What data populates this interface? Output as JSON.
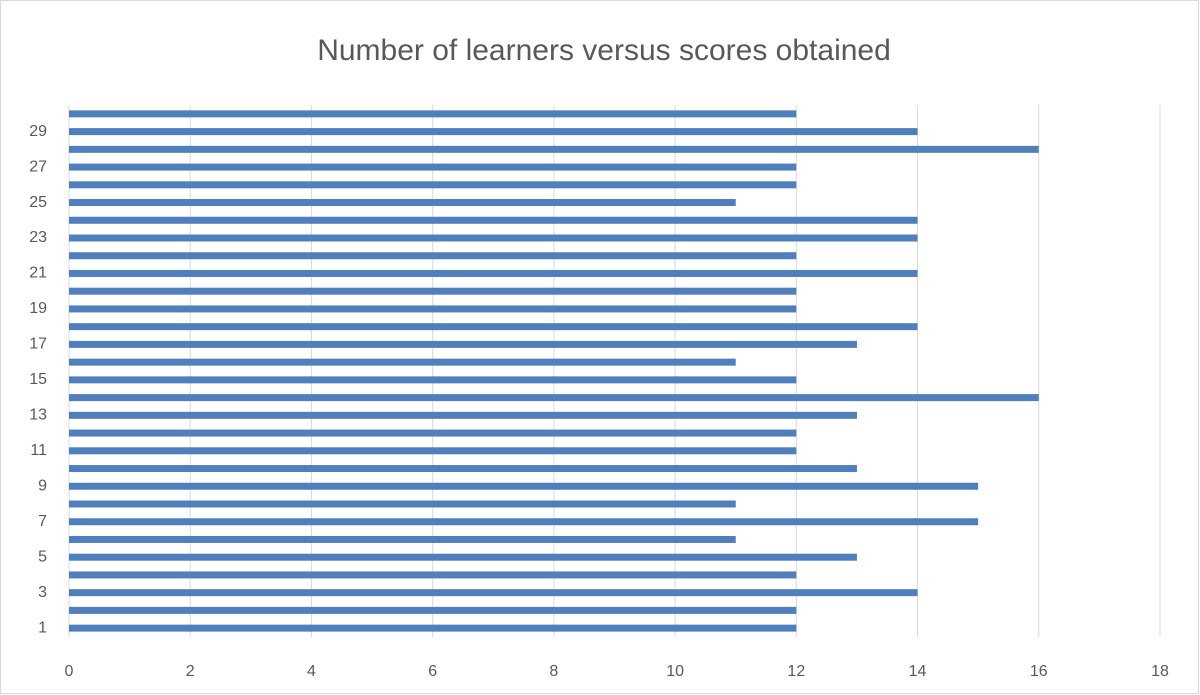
{
  "chart_data": {
    "type": "barh",
    "title": "Number of learners versus scores obtained",
    "categories": [
      1,
      null,
      3,
      null,
      5,
      null,
      7,
      null,
      9,
      null,
      11,
      null,
      13,
      null,
      15,
      null,
      17,
      null,
      19,
      null,
      21,
      null,
      23,
      null,
      25,
      null,
      27,
      null,
      29,
      null
    ],
    "values": [
      12,
      12,
      14,
      12,
      13,
      11,
      15,
      11,
      15,
      13,
      12,
      12,
      13,
      16,
      12,
      11,
      13,
      14,
      12,
      12,
      14,
      12,
      14,
      14,
      11,
      12,
      12,
      16,
      14,
      12
    ],
    "color": "#4f7fbc",
    "xlim": [
      0,
      18
    ],
    "xticks": [
      0,
      2,
      4,
      6,
      8,
      10,
      12,
      14,
      16,
      18
    ],
    "grid": true
  }
}
